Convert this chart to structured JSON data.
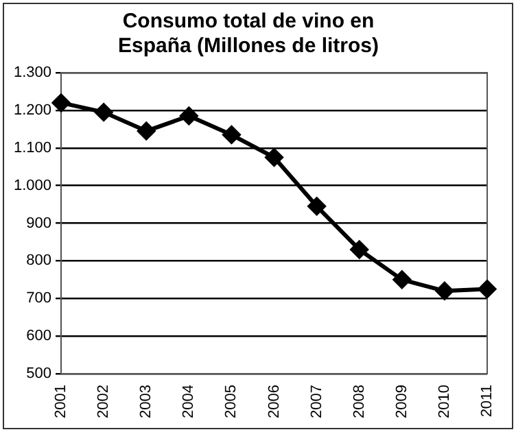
{
  "chart_data": {
    "type": "line",
    "title": [
      "Consumo total de vino en",
      "España (Millones de litros)"
    ],
    "categories": [
      "2001",
      "2002",
      "2003",
      "2004",
      "2005",
      "2006",
      "2007",
      "2008",
      "2009",
      "2010",
      "2011"
    ],
    "series": [
      {
        "color": "#000000",
        "values": [
          1220,
          1195,
          1145,
          1185,
          1135,
          1075,
          945,
          830,
          750,
          720,
          725
        ]
      }
    ],
    "ylim": [
      500,
      1300
    ],
    "yticks": [
      500,
      600,
      700,
      800,
      900,
      {
        "value": 1000,
        "label": "1.000"
      },
      {
        "value": 1100,
        "label": "1.100"
      },
      {
        "value": 1200,
        "label": "1.200"
      },
      {
        "value": 1300,
        "label": "1.300"
      }
    ],
    "grid": "y",
    "legend": false,
    "marker": "diamond",
    "line_style": "solid"
  }
}
